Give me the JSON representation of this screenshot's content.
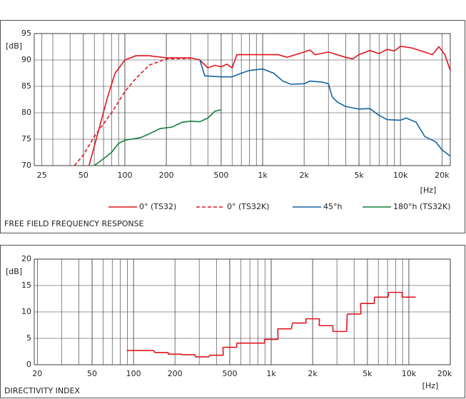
{
  "chart_data": [
    {
      "type": "line",
      "title": "FREE FIELD FREQUENCY RESPONSE",
      "y_label": "[dB]",
      "x_label": "[Hz]",
      "xscale": "log",
      "xlim": [
        22,
        23000
      ],
      "xticks": [
        25,
        50,
        100,
        200,
        500,
        {
          "value": 1000,
          "label": "1k"
        },
        {
          "value": 2000,
          "label": "2k"
        },
        {
          "value": 5000,
          "label": "5k"
        },
        {
          "value": 10000,
          "label": "10k"
        },
        {
          "value": 20000,
          "label": "20k"
        }
      ],
      "ylim": [
        70,
        95
      ],
      "yticks": [
        70,
        75,
        80,
        85,
        90,
        95
      ],
      "grid": true,
      "legend": "bottom",
      "series": [
        {
          "name": "0° (TS32)",
          "color": "#e0141e",
          "linestyle": "solid",
          "x": [
            55,
            65,
            75,
            85,
            100,
            120,
            150,
            200,
            300,
            350,
            400,
            450,
            500,
            550,
            600,
            650,
            1000,
            1300,
            1500,
            2000,
            2200,
            2400,
            3000,
            4000,
            4500,
            5000,
            6000,
            7000,
            8000,
            9000,
            10000,
            12000,
            15000,
            17000,
            19000,
            21000,
            23000
          ],
          "values": [
            70,
            77,
            83,
            87.5,
            90,
            90.8,
            90.8,
            90.4,
            90.4,
            90,
            88.5,
            89,
            88.7,
            89.2,
            88.5,
            91,
            91,
            91,
            90.5,
            91.5,
            91.9,
            91,
            91.5,
            90.5,
            90.2,
            91,
            91.8,
            91.2,
            92,
            91.7,
            92.6,
            92.3,
            91.5,
            91,
            92.5,
            91,
            88
          ]
        },
        {
          "name": "0° (TS32K)",
          "color": "#e0141e",
          "linestyle": "dashed",
          "x": [
            43,
            50,
            60,
            80,
            100,
            120,
            150,
            200,
            300
          ],
          "values": [
            70,
            72,
            75.5,
            80,
            84,
            86.5,
            89,
            90.2,
            90.3
          ]
        },
        {
          "name": "45°h",
          "color": "#1464a0",
          "linestyle": "solid",
          "x": [
            350,
            380,
            500,
            600,
            700,
            800,
            1000,
            1200,
            1400,
            1600,
            2000,
            2200,
            2700,
            3000,
            3200,
            3500,
            4000,
            5000,
            6000,
            7000,
            8000,
            10000,
            11000,
            13000,
            15000,
            18000,
            20000,
            23000
          ],
          "values": [
            90,
            87,
            86.8,
            86.8,
            87.5,
            88,
            88.3,
            87.5,
            86,
            85.4,
            85.5,
            86,
            85.8,
            85.5,
            83,
            82,
            81.2,
            80.7,
            80.8,
            79.5,
            78.7,
            78.6,
            79,
            78.2,
            75.5,
            74.5,
            73,
            71.8
          ]
        },
        {
          "name": "180°h (TS32K)",
          "color": "#14803c",
          "linestyle": "solid",
          "x": [
            60,
            70,
            80,
            90,
            100,
            130,
            150,
            180,
            220,
            260,
            300,
            350,
            400,
            450,
            500
          ],
          "values": [
            70,
            71.3,
            72.5,
            74.2,
            74.8,
            75.3,
            76,
            77,
            77.3,
            78.2,
            78.4,
            78.3,
            79,
            80.3,
            80.6
          ]
        }
      ]
    },
    {
      "type": "step",
      "title": "DIRECTIVITY INDEX",
      "y_label": "[dB]",
      "x_label": "[Hz]",
      "xscale": "log",
      "xlim": [
        19,
        20000
      ],
      "xticks": [
        20,
        50,
        100,
        200,
        500,
        {
          "value": 1000,
          "label": "1k"
        },
        {
          "value": 2000,
          "label": "2k"
        },
        {
          "value": 5000,
          "label": "5k"
        },
        {
          "value": 10000,
          "label": "10k"
        },
        {
          "value": 20000,
          "label": "20k"
        }
      ],
      "ylim": [
        0,
        20
      ],
      "yticks": [
        0,
        5,
        10,
        15,
        20
      ],
      "grid": true,
      "series": [
        {
          "color": "#e0141e",
          "x": [
            100,
            125,
            160,
            200,
            250,
            315,
            400,
            500,
            630,
            800,
            1000,
            1250,
            1600,
            2000,
            2500,
            3150,
            4000,
            5000,
            6300,
            8000,
            10000
          ],
          "values": [
            2.7,
            2.7,
            2.3,
            2.0,
            1.9,
            1.5,
            1.8,
            3.3,
            4.1,
            4.1,
            4.8,
            6.8,
            7.9,
            8.7,
            7.4,
            6.3,
            9.6,
            11.6,
            12.8,
            13.7,
            12.8
          ]
        }
      ]
    }
  ]
}
